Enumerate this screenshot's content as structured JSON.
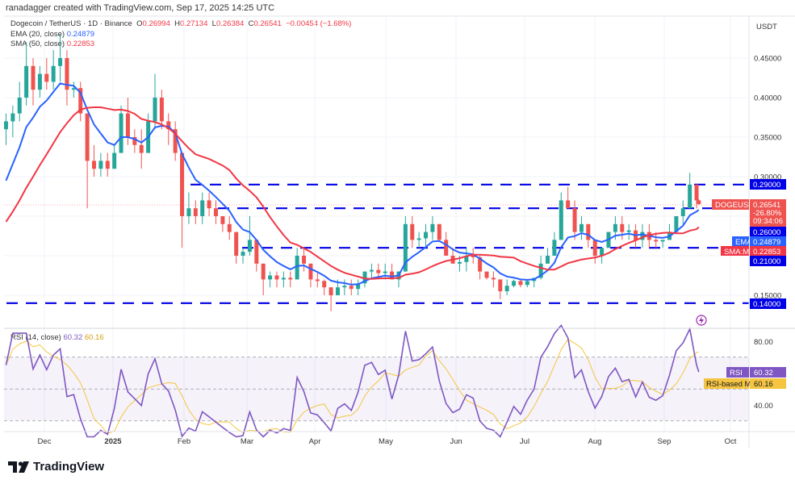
{
  "credit": "ranadagger created with TradingView.com, Sep 17, 2025 14:25 UTC",
  "legend": {
    "symbol": "Dogecoin / TetherUS · 1D · Binance",
    "o_label": "O",
    "o": "0.26994",
    "h_label": "H",
    "h": "0.27134",
    "l_label": "L",
    "l": "0.26384",
    "c_label": "C",
    "c": "0.26541",
    "change": "−0.00454 (−1.68%)",
    "ema_label": "EMA (20, close)",
    "ema_value": "0.24879",
    "sma_label": "SMA (50, close)",
    "sma_value": "0.22853",
    "rsi_label": "RSI (14, close)",
    "rsi_value": "60.32",
    "rsi_ma_value": "60.16"
  },
  "price_axis": {
    "currency": "USDT",
    "ticks": [
      "0.45000",
      "0.40000",
      "0.35000",
      "0.30000",
      "0.15000"
    ],
    "tags": {
      "level_029": "0.29000",
      "symbol_name": "DOGEUSDT",
      "last_price": "0.26541",
      "change_pct": "-26.80%",
      "countdown": "09:34:06",
      "level_026": "0.26000",
      "ema_name": "EMA",
      "ema": "0.24879",
      "sma_name": "SMA:MA",
      "sma": "0.22853",
      "level_021": "0.21000",
      "level_014": "0.14000"
    }
  },
  "rsi_axis": {
    "ticks": [
      "80.00",
      "40.00"
    ],
    "rsi_tag_name": "RSI",
    "rsi_tag": "60.32",
    "ma_tag_name": "RSI-based MA",
    "ma_tag": "60.16"
  },
  "time_axis": [
    "Dec",
    "2025",
    "Feb",
    "Mar",
    "Apr",
    "May",
    "Jun",
    "Jul",
    "Aug",
    "Sep",
    "Oct"
  ],
  "footer": {
    "brand": "TradingView"
  },
  "colors": {
    "up": "#26a69a",
    "down": "#ef5350",
    "ema": "#2962ff",
    "sma": "#f23645",
    "levels": "#0000e6",
    "rsi": "#7e57c2",
    "rsi_ma": "#f5c542"
  },
  "chart_data": {
    "type": "candlestick",
    "symbol": "DOGEUSDT",
    "yscale": "linear",
    "ylim": [
      0.125,
      0.49
    ],
    "horizontal_levels": [
      0.29,
      0.26,
      0.21,
      0.14
    ],
    "indicators": {
      "ema_period": 20,
      "sma_period": 50,
      "rsi_period": 14,
      "rsi_bands": [
        70,
        50,
        30
      ]
    },
    "candles": [
      [
        "2024-11-14",
        0.36,
        0.38,
        0.34,
        0.37
      ],
      [
        "2024-11-17",
        0.37,
        0.39,
        0.35,
        0.38
      ],
      [
        "2024-11-20",
        0.38,
        0.42,
        0.37,
        0.4
      ],
      [
        "2024-11-23",
        0.4,
        0.47,
        0.39,
        0.44
      ],
      [
        "2024-11-26",
        0.44,
        0.45,
        0.39,
        0.41
      ],
      [
        "2024-11-29",
        0.41,
        0.44,
        0.4,
        0.43
      ],
      [
        "2024-12-02",
        0.43,
        0.45,
        0.41,
        0.42
      ],
      [
        "2024-12-05",
        0.42,
        0.46,
        0.41,
        0.44
      ],
      [
        "2024-12-08",
        0.44,
        0.48,
        0.42,
        0.45
      ],
      [
        "2024-12-11",
        0.45,
        0.46,
        0.39,
        0.41
      ],
      [
        "2024-12-14",
        0.41,
        0.42,
        0.4,
        0.412
      ],
      [
        "2024-12-17",
        0.412,
        0.42,
        0.37,
        0.38
      ],
      [
        "2024-12-20",
        0.38,
        0.38,
        0.26,
        0.32
      ],
      [
        "2024-12-23",
        0.32,
        0.34,
        0.3,
        0.31
      ],
      [
        "2024-12-26",
        0.31,
        0.33,
        0.3,
        0.32
      ],
      [
        "2024-12-29",
        0.32,
        0.33,
        0.3,
        0.31
      ],
      [
        "2025-01-01",
        0.31,
        0.34,
        0.31,
        0.33
      ],
      [
        "2025-01-04",
        0.33,
        0.39,
        0.33,
        0.38
      ],
      [
        "2025-01-07",
        0.38,
        0.4,
        0.34,
        0.35
      ],
      [
        "2025-01-10",
        0.35,
        0.36,
        0.33,
        0.34
      ],
      [
        "2025-01-13",
        0.34,
        0.36,
        0.31,
        0.33
      ],
      [
        "2025-01-16",
        0.33,
        0.38,
        0.33,
        0.37
      ],
      [
        "2025-01-19",
        0.37,
        0.43,
        0.36,
        0.4
      ],
      [
        "2025-01-22",
        0.4,
        0.41,
        0.36,
        0.37
      ],
      [
        "2025-01-25",
        0.37,
        0.38,
        0.34,
        0.36
      ],
      [
        "2025-01-28",
        0.36,
        0.37,
        0.32,
        0.33
      ],
      [
        "2025-01-31",
        0.33,
        0.33,
        0.21,
        0.25
      ],
      [
        "2025-02-03",
        0.25,
        0.28,
        0.24,
        0.26
      ],
      [
        "2025-02-06",
        0.26,
        0.27,
        0.24,
        0.25
      ],
      [
        "2025-02-09",
        0.25,
        0.28,
        0.24,
        0.27
      ],
      [
        "2025-02-12",
        0.27,
        0.28,
        0.25,
        0.26
      ],
      [
        "2025-02-15",
        0.26,
        0.27,
        0.24,
        0.25
      ],
      [
        "2025-02-18",
        0.25,
        0.25,
        0.23,
        0.24
      ],
      [
        "2025-02-21",
        0.24,
        0.25,
        0.22,
        0.23
      ],
      [
        "2025-02-24",
        0.23,
        0.23,
        0.19,
        0.2
      ],
      [
        "2025-02-27",
        0.2,
        0.21,
        0.19,
        0.205
      ],
      [
        "2025-03-02",
        0.205,
        0.25,
        0.2,
        0.22
      ],
      [
        "2025-03-05",
        0.22,
        0.22,
        0.18,
        0.19
      ],
      [
        "2025-03-08",
        0.19,
        0.19,
        0.15,
        0.17
      ],
      [
        "2025-03-11",
        0.17,
        0.18,
        0.16,
        0.175
      ],
      [
        "2025-03-14",
        0.175,
        0.18,
        0.16,
        0.17
      ],
      [
        "2025-03-17",
        0.17,
        0.18,
        0.16,
        0.172
      ],
      [
        "2025-03-20",
        0.172,
        0.18,
        0.16,
        0.17
      ],
      [
        "2025-03-23",
        0.17,
        0.21,
        0.17,
        0.2
      ],
      [
        "2025-03-26",
        0.2,
        0.21,
        0.18,
        0.19
      ],
      [
        "2025-03-29",
        0.19,
        0.19,
        0.16,
        0.17
      ],
      [
        "2025-04-01",
        0.17,
        0.18,
        0.16,
        0.168
      ],
      [
        "2025-04-04",
        0.168,
        0.17,
        0.15,
        0.16
      ],
      [
        "2025-04-07",
        0.16,
        0.16,
        0.13,
        0.15
      ],
      [
        "2025-04-10",
        0.15,
        0.17,
        0.15,
        0.16
      ],
      [
        "2025-04-13",
        0.16,
        0.17,
        0.15,
        0.162
      ],
      [
        "2025-04-16",
        0.162,
        0.17,
        0.15,
        0.158
      ],
      [
        "2025-04-19",
        0.158,
        0.17,
        0.15,
        0.165
      ],
      [
        "2025-04-22",
        0.165,
        0.18,
        0.16,
        0.18
      ],
      [
        "2025-04-25",
        0.18,
        0.19,
        0.17,
        0.182
      ],
      [
        "2025-04-28",
        0.182,
        0.19,
        0.17,
        0.178
      ],
      [
        "2025-05-01",
        0.178,
        0.19,
        0.17,
        0.18
      ],
      [
        "2025-05-04",
        0.18,
        0.19,
        0.17,
        0.17
      ],
      [
        "2025-05-07",
        0.17,
        0.18,
        0.16,
        0.18
      ],
      [
        "2025-05-10",
        0.18,
        0.25,
        0.18,
        0.24
      ],
      [
        "2025-05-13",
        0.24,
        0.25,
        0.21,
        0.22
      ],
      [
        "2025-05-16",
        0.22,
        0.23,
        0.21,
        0.222
      ],
      [
        "2025-05-19",
        0.222,
        0.24,
        0.21,
        0.23
      ],
      [
        "2025-05-22",
        0.23,
        0.25,
        0.22,
        0.24
      ],
      [
        "2025-05-25",
        0.24,
        0.24,
        0.22,
        0.22
      ],
      [
        "2025-05-28",
        0.22,
        0.23,
        0.2,
        0.2
      ],
      [
        "2025-05-31",
        0.2,
        0.21,
        0.19,
        0.19
      ],
      [
        "2025-06-03",
        0.19,
        0.2,
        0.18,
        0.192
      ],
      [
        "2025-06-06",
        0.192,
        0.21,
        0.18,
        0.2
      ],
      [
        "2025-06-09",
        0.2,
        0.21,
        0.19,
        0.198
      ],
      [
        "2025-06-12",
        0.198,
        0.2,
        0.17,
        0.18
      ],
      [
        "2025-06-15",
        0.18,
        0.18,
        0.17,
        0.172
      ],
      [
        "2025-06-18",
        0.172,
        0.18,
        0.16,
        0.17
      ],
      [
        "2025-06-21",
        0.17,
        0.17,
        0.145,
        0.155
      ],
      [
        "2025-06-24",
        0.155,
        0.17,
        0.15,
        0.162
      ],
      [
        "2025-06-27",
        0.162,
        0.17,
        0.16,
        0.168
      ],
      [
        "2025-06-30",
        0.168,
        0.17,
        0.16,
        0.163
      ],
      [
        "2025-07-03",
        0.163,
        0.17,
        0.16,
        0.168
      ],
      [
        "2025-07-06",
        0.168,
        0.17,
        0.16,
        0.172
      ],
      [
        "2025-07-09",
        0.172,
        0.2,
        0.17,
        0.19
      ],
      [
        "2025-07-12",
        0.19,
        0.21,
        0.19,
        0.2
      ],
      [
        "2025-07-15",
        0.2,
        0.23,
        0.2,
        0.22
      ],
      [
        "2025-07-18",
        0.22,
        0.28,
        0.22,
        0.27
      ],
      [
        "2025-07-21",
        0.27,
        0.287,
        0.26,
        0.26
      ],
      [
        "2025-07-24",
        0.26,
        0.27,
        0.22,
        0.23
      ],
      [
        "2025-07-27",
        0.23,
        0.25,
        0.22,
        0.24
      ],
      [
        "2025-07-30",
        0.24,
        0.24,
        0.21,
        0.22
      ],
      [
        "2025-08-02",
        0.22,
        0.22,
        0.19,
        0.2
      ],
      [
        "2025-08-05",
        0.2,
        0.21,
        0.19,
        0.21
      ],
      [
        "2025-08-08",
        0.21,
        0.23,
        0.21,
        0.23
      ],
      [
        "2025-08-11",
        0.23,
        0.25,
        0.22,
        0.24
      ],
      [
        "2025-08-14",
        0.24,
        0.25,
        0.22,
        0.23
      ],
      [
        "2025-08-17",
        0.23,
        0.24,
        0.22,
        0.232
      ],
      [
        "2025-08-20",
        0.232,
        0.24,
        0.21,
        0.22
      ],
      [
        "2025-08-23",
        0.22,
        0.24,
        0.21,
        0.23
      ],
      [
        "2025-08-26",
        0.23,
        0.24,
        0.21,
        0.22
      ],
      [
        "2025-08-29",
        0.22,
        0.23,
        0.21,
        0.218
      ],
      [
        "2025-09-01",
        0.218,
        0.22,
        0.21,
        0.22
      ],
      [
        "2025-09-04",
        0.22,
        0.24,
        0.22,
        0.23
      ],
      [
        "2025-09-07",
        0.23,
        0.25,
        0.23,
        0.25
      ],
      [
        "2025-09-10",
        0.25,
        0.27,
        0.24,
        0.26
      ],
      [
        "2025-09-13",
        0.26,
        0.305,
        0.26,
        0.29
      ],
      [
        "2025-09-16",
        0.29,
        0.29,
        0.26,
        0.27
      ],
      [
        "2025-09-17",
        0.26994,
        0.27134,
        0.26384,
        0.26541
      ]
    ]
  }
}
